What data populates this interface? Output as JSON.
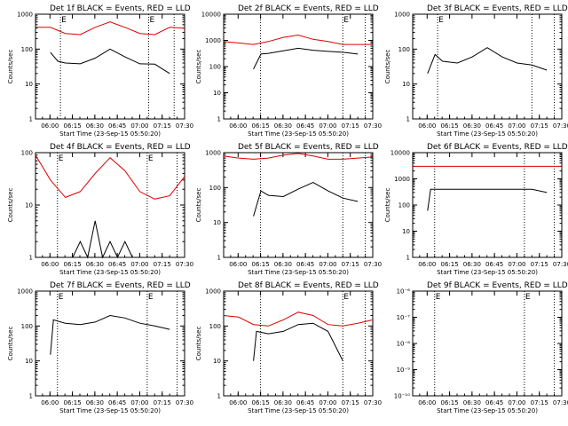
{
  "chart_data": [
    {
      "type": "line",
      "title": "Det 1f BLACK = Events, RED = LLD",
      "xlabel": "Start Time (23-Sep-15 05:50:20)",
      "ylabel": "Counts/sec",
      "scale": "log",
      "ylim": [
        1,
        1000
      ],
      "yticks": [
        "1",
        "10",
        "100",
        "1000"
      ],
      "xticks": [
        "06:00",
        "06:15",
        "06:30",
        "06:45",
        "07:00",
        "07:15",
        "07:30"
      ],
      "markers": [
        {
          "x": "06:07",
          "label": "E"
        },
        {
          "x": "07:06",
          "label": "E"
        },
        {
          "x": "07:23",
          "label": ""
        }
      ],
      "series": [
        {
          "name": "RED = LLD",
          "color": "#dd0000",
          "x": [
            0,
            10,
            20,
            30,
            40,
            50,
            60,
            70,
            80,
            90,
            100
          ],
          "y": [
            420,
            420,
            280,
            260,
            420,
            600,
            420,
            280,
            260,
            420,
            400
          ]
        },
        {
          "name": "BLACK = Events",
          "color": "#000000",
          "x": [
            10,
            15,
            20,
            30,
            40,
            50,
            60,
            70,
            80,
            90
          ],
          "y": [
            80,
            45,
            40,
            38,
            55,
            100,
            60,
            38,
            37,
            20
          ]
        }
      ]
    },
    {
      "type": "line",
      "title": "Det 2f BLACK = Events, RED = LLD",
      "xlabel": "Start Time (23-Sep-15 05:50:20)",
      "ylabel": "Counts/sec",
      "scale": "log",
      "ylim": [
        1,
        10000
      ],
      "yticks": [
        "1",
        "10",
        "100",
        "1000",
        "10000"
      ],
      "xticks": [
        "06:00",
        "06:15",
        "06:30",
        "06:45",
        "07:00",
        "07:15",
        "07:30"
      ],
      "markers": [
        {
          "x": "06:15",
          "label": ""
        },
        {
          "x": "07:10",
          "label": "E"
        },
        {
          "x": "07:25",
          "label": ""
        }
      ],
      "series": [
        {
          "name": "RED = LLD",
          "color": "#dd0000",
          "x": [
            0,
            10,
            20,
            30,
            40,
            50,
            60,
            70,
            80,
            90,
            100
          ],
          "y": [
            900,
            800,
            700,
            900,
            1300,
            1600,
            1100,
            900,
            700,
            700,
            700
          ]
        },
        {
          "name": "BLACK = Events",
          "color": "#000000",
          "x": [
            20,
            25,
            30,
            40,
            50,
            60,
            70,
            80,
            90
          ],
          "y": [
            80,
            300,
            320,
            400,
            500,
            420,
            380,
            350,
            300
          ]
        }
      ]
    },
    {
      "type": "line",
      "title": "Det 3f BLACK = Events, RED = LLD",
      "xlabel": "Start Time (23-Sep-15 05:50:20)",
      "ylabel": "Counts/sec",
      "scale": "log",
      "ylim": [
        1,
        1000
      ],
      "yticks": [
        "1",
        "10",
        "100",
        "1000"
      ],
      "xticks": [
        "06:00",
        "06:15",
        "06:30",
        "06:45",
        "07:00",
        "07:15",
        "07:30"
      ],
      "markers": [
        {
          "x": "06:07",
          "label": "E"
        },
        {
          "x": "07:10",
          "label": ""
        },
        {
          "x": "07:25",
          "label": ""
        }
      ],
      "series": [
        {
          "name": "BLACK = Events",
          "color": "#000000",
          "x": [
            10,
            15,
            20,
            30,
            40,
            50,
            60,
            70,
            80,
            90
          ],
          "y": [
            20,
            70,
            45,
            40,
            60,
            110,
            60,
            40,
            35,
            25
          ]
        }
      ]
    },
    {
      "type": "line",
      "title": "Det 4f BLACK = Events, RED = LLD",
      "xlabel": "Start Time (23-Sep-15 05:50:20)",
      "ylabel": "Counts/sec",
      "scale": "log",
      "ylim": [
        1,
        100
      ],
      "yticks": [
        "1",
        "10",
        "100"
      ],
      "xticks": [
        "06:00",
        "06:15",
        "06:30",
        "06:45",
        "07:00",
        "07:15",
        "07:30"
      ],
      "markers": [
        {
          "x": "06:05",
          "label": "E"
        },
        {
          "x": "07:05",
          "label": "E"
        },
        {
          "x": "07:25",
          "label": ""
        }
      ],
      "series": [
        {
          "name": "RED = LLD",
          "color": "#dd0000",
          "x": [
            0,
            10,
            20,
            30,
            40,
            50,
            60,
            70,
            80,
            90,
            100
          ],
          "y": [
            90,
            30,
            14,
            18,
            40,
            80,
            45,
            18,
            13,
            15,
            35
          ]
        },
        {
          "name": "BLACK = Events",
          "color": "#000000",
          "x": [
            25,
            30,
            35,
            40,
            45,
            50,
            55,
            60,
            65
          ],
          "y": [
            1,
            2,
            1,
            5,
            1,
            2,
            1,
            2,
            1
          ]
        }
      ]
    },
    {
      "type": "line",
      "title": "Det 5f BLACK = Events, RED = LLD",
      "xlabel": "Start Time (23-Sep-15 05:50:20)",
      "ylabel": "Counts/sec",
      "scale": "log",
      "ylim": [
        1,
        1000
      ],
      "yticks": [
        "1",
        "10",
        "100",
        "1000"
      ],
      "xticks": [
        "06:00",
        "06:15",
        "06:30",
        "06:45",
        "07:00",
        "07:15",
        "07:30"
      ],
      "markers": [
        {
          "x": "06:15",
          "label": ""
        },
        {
          "x": "07:10",
          "label": ""
        },
        {
          "x": "07:25",
          "label": ""
        }
      ],
      "series": [
        {
          "name": "RED = LLD",
          "color": "#dd0000",
          "x": [
            0,
            10,
            20,
            30,
            40,
            50,
            60,
            70,
            80,
            90,
            100
          ],
          "y": [
            800,
            700,
            650,
            700,
            850,
            950,
            800,
            650,
            650,
            700,
            750
          ]
        },
        {
          "name": "BLACK = Events",
          "color": "#000000",
          "x": [
            20,
            25,
            30,
            40,
            50,
            60,
            70,
            80,
            90
          ],
          "y": [
            15,
            80,
            60,
            55,
            90,
            140,
            80,
            50,
            40
          ]
        }
      ]
    },
    {
      "type": "line",
      "title": "Det 6f BLACK = Events, RED = LLD",
      "xlabel": "Start Time (23-Sep-15 05:50:20)",
      "ylabel": "Counts/sec",
      "scale": "log",
      "ylim": [
        1,
        10000
      ],
      "yticks": [
        "1",
        "10",
        "100",
        "1000",
        "10000"
      ],
      "xticks": [
        "06:00",
        "06:15",
        "06:30",
        "06:45",
        "07:00",
        "07:15",
        "07:30"
      ],
      "markers": [
        {
          "x": "06:05",
          "label": ""
        },
        {
          "x": "07:05",
          "label": ""
        },
        {
          "x": "07:25",
          "label": ""
        }
      ],
      "series": [
        {
          "name": "RED = LLD",
          "color": "#dd0000",
          "x": [
            0,
            100
          ],
          "y": [
            3000,
            3000
          ]
        },
        {
          "name": "BLACK = Events",
          "color": "#000000",
          "x": [
            10,
            12,
            20,
            40,
            60,
            80,
            90
          ],
          "y": [
            60,
            400,
            400,
            400,
            400,
            400,
            300
          ]
        }
      ]
    },
    {
      "type": "line",
      "title": "Det 7f BLACK = Events, RED = LLD",
      "xlabel": "Start Time (23-Sep-15 05:50:20)",
      "ylabel": "Counts/sec",
      "scale": "log",
      "ylim": [
        1,
        1000
      ],
      "yticks": [
        "1",
        "10",
        "100",
        "1000"
      ],
      "xticks": [
        "06:00",
        "06:15",
        "06:30",
        "06:45",
        "07:00",
        "07:15",
        "07:30"
      ],
      "markers": [
        {
          "x": "06:05",
          "label": "E"
        },
        {
          "x": "07:05",
          "label": "E"
        },
        {
          "x": "07:25",
          "label": ""
        }
      ],
      "series": [
        {
          "name": "BLACK = Events",
          "color": "#000000",
          "x": [
            10,
            12,
            20,
            30,
            40,
            50,
            60,
            70,
            80,
            90
          ],
          "y": [
            15,
            150,
            120,
            110,
            130,
            200,
            170,
            120,
            100,
            80
          ]
        }
      ]
    },
    {
      "type": "line",
      "title": "Det 8f BLACK = Events, RED = LLD",
      "xlabel": "Start Time (23-Sep-15 05:50:20)",
      "ylabel": "Counts/sec",
      "scale": "log",
      "ylim": [
        1,
        1000
      ],
      "yticks": [
        "1",
        "10",
        "100",
        "1000"
      ],
      "xticks": [
        "06:00",
        "06:15",
        "06:30",
        "06:45",
        "07:00",
        "07:15",
        "07:30"
      ],
      "markers": [
        {
          "x": "06:15",
          "label": ""
        },
        {
          "x": "07:10",
          "label": "E"
        },
        {
          "x": "07:25",
          "label": ""
        }
      ],
      "series": [
        {
          "name": "RED = LLD",
          "color": "#dd0000",
          "x": [
            0,
            10,
            20,
            30,
            40,
            50,
            60,
            70,
            80,
            90,
            100
          ],
          "y": [
            200,
            180,
            110,
            100,
            150,
            250,
            200,
            110,
            100,
            120,
            150
          ]
        },
        {
          "name": "BLACK = Events",
          "color": "#000000",
          "x": [
            20,
            22,
            30,
            40,
            50,
            60,
            70,
            80
          ],
          "y": [
            10,
            70,
            60,
            70,
            110,
            120,
            70,
            10
          ]
        }
      ]
    },
    {
      "type": "line",
      "title": "Det 9f BLACK = Events, RED = LLD",
      "xlabel": "Start Time (23-Sep-15 05:50:20)",
      "ylabel": "",
      "scale": "log",
      "ylim": [
        1e-10,
        1e-06
      ],
      "yticks": [
        "10⁻¹⁰",
        "10⁻⁹",
        "10⁻⁸",
        "10⁻⁷",
        "10⁻⁶"
      ],
      "xticks": [
        "06:00",
        "06:15",
        "06:30",
        "06:45",
        "07:00",
        "07:15",
        "07:30"
      ],
      "markers": [
        {
          "x": "06:05",
          "label": "E"
        },
        {
          "x": "07:05",
          "label": "E"
        },
        {
          "x": "07:25",
          "label": ""
        }
      ],
      "series": []
    }
  ]
}
